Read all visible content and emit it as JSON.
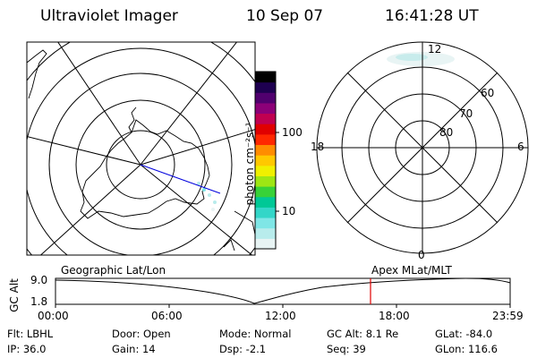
{
  "header": {
    "instrument": "Ultraviolet Imager",
    "date": "10 Sep 07",
    "time": "16:41:28 UT"
  },
  "colorbar": {
    "unit_label": "photon cm⁻²s⁻¹",
    "ticks": [
      "100",
      "10"
    ],
    "colors": [
      "#e8f4f4",
      "#b8ecec",
      "#7fe6e6",
      "#33d6c8",
      "#00c896",
      "#38d238",
      "#9ee614",
      "#f0f000",
      "#ffc800",
      "#ff8c00",
      "#ff2800",
      "#e00000",
      "#c00050",
      "#8c0078",
      "#50006e",
      "#1e0050",
      "#000000"
    ]
  },
  "left_map": {
    "caption": "Geographic Lat/Lon"
  },
  "right_map": {
    "caption": "Apex MLat/MLT",
    "mlt_labels": {
      "top": "12",
      "left": "18",
      "right": "6",
      "bottom": "0"
    },
    "lat_labels": [
      "60",
      "70",
      "80"
    ]
  },
  "timeline": {
    "ylabel": "GC Alt",
    "y_ticks": [
      "9.0",
      "1.8"
    ],
    "x_ticks": [
      "00:00",
      "06:00",
      "12:00",
      "18:00",
      "23:59"
    ],
    "current_time_marker_color": "#e00000"
  },
  "info": {
    "filter": "Flt: LBHL",
    "ip": "IP: 36.0",
    "door": "Door: Open",
    "gain": "Gain: 14",
    "mode": "Mode: Normal",
    "dsp": "Dsp:   -2.1",
    "gc_alt": "GC Alt: 8.1 Re",
    "seq": "Seq: 39",
    "glat": "GLat: -84.0",
    "glon": "GLon: 116.6"
  }
}
